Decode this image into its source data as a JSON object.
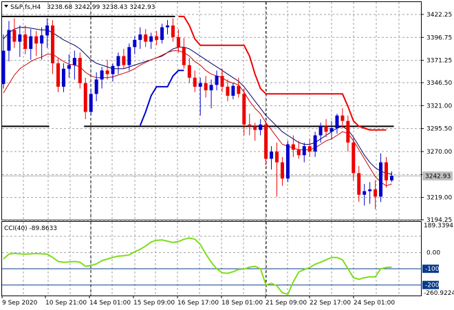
{
  "header": {
    "symbol_label": "S&P,fs,H4",
    "ohlc": "3238.68 3242.99 3238.43 3242.93"
  },
  "price_axis": {
    "ticks": [
      "3422.25",
      "3396.75",
      "3371.25",
      "3346.50",
      "3321.00",
      "3295.50",
      "3270.00",
      "3244.50",
      "3219.00",
      "3194.25"
    ],
    "current_label": "3242.93",
    "current_price": 3242.93
  },
  "cci_panel": {
    "label": "CCI(40) -89.8633",
    "max_label": "189.3394",
    "min_label": "-260.9224",
    "ticks": [
      "0.00",
      "-100",
      "-200"
    ],
    "highlight_ticks": [
      "-100",
      "-200"
    ],
    "levels": [
      100,
      0,
      -100,
      -200
    ]
  },
  "time_axis": {
    "labels": [
      "9 Sep 2020",
      "10 Sep 21:00",
      "14 Sep 01:00",
      "15 Sep 09:00",
      "16 Sep 17:00",
      "18 Sep 01:00",
      "21 Sep 09:00",
      "22 Sep 17:00",
      "24 Sep 01:00"
    ]
  },
  "colors": {
    "bull": "#0000cc",
    "bear": "#ee0000",
    "ma_fast": "#cc0000",
    "ma_slow": "#000066",
    "channel_upper": "#ee0000",
    "channel_lower": "#0000cc",
    "cci": "#7cde16",
    "grid": "#a0a0a0",
    "label_bg": "#c0c0c0",
    "level_highlight": "#0a3a8a"
  },
  "chart_data": {
    "type": "candlestick",
    "timeframe": "H4",
    "ylim": [
      3194.25,
      3436
    ],
    "candles": [
      [
        3345,
        3400,
        3340,
        3382
      ],
      [
        3382,
        3415,
        3370,
        3405
      ],
      [
        3405,
        3418,
        3385,
        3392
      ],
      [
        3392,
        3410,
        3375,
        3400
      ],
      [
        3400,
        3410,
        3378,
        3384
      ],
      [
        3384,
        3406,
        3372,
        3398
      ],
      [
        3398,
        3404,
        3376,
        3390
      ],
      [
        3390,
        3408,
        3372,
        3399
      ],
      [
        3399,
        3418,
        3385,
        3410
      ],
      [
        3410,
        3416,
        3356,
        3368
      ],
      [
        3368,
        3374,
        3336,
        3342
      ],
      [
        3342,
        3368,
        3336,
        3362
      ],
      [
        3362,
        3378,
        3352,
        3366
      ],
      [
        3366,
        3382,
        3350,
        3374
      ],
      [
        3374,
        3380,
        3340,
        3346
      ],
      [
        3346,
        3352,
        3306,
        3314
      ],
      [
        3314,
        3340,
        3310,
        3334
      ],
      [
        3334,
        3358,
        3326,
        3350
      ],
      [
        3350,
        3364,
        3340,
        3360
      ],
      [
        3360,
        3372,
        3350,
        3356
      ],
      [
        3356,
        3368,
        3348,
        3365
      ],
      [
        3365,
        3380,
        3356,
        3376
      ],
      [
        3376,
        3384,
        3362,
        3366
      ],
      [
        3366,
        3390,
        3360,
        3386
      ],
      [
        3386,
        3398,
        3378,
        3394
      ],
      [
        3394,
        3408,
        3384,
        3400
      ],
      [
        3400,
        3406,
        3386,
        3392
      ],
      [
        3392,
        3402,
        3384,
        3398
      ],
      [
        3398,
        3404,
        3388,
        3394
      ],
      [
        3394,
        3412,
        3390,
        3408
      ],
      [
        3408,
        3416,
        3400,
        3410
      ],
      [
        3410,
        3418,
        3392,
        3397
      ],
      [
        3397,
        3406,
        3380,
        3386
      ],
      [
        3386,
        3396,
        3362,
        3366
      ],
      [
        3366,
        3374,
        3346,
        3352
      ],
      [
        3352,
        3360,
        3336,
        3342
      ],
      [
        3342,
        3352,
        3310,
        3346
      ],
      [
        3346,
        3354,
        3330,
        3338
      ],
      [
        3338,
        3350,
        3318,
        3344
      ],
      [
        3344,
        3360,
        3338,
        3354
      ],
      [
        3354,
        3362,
        3336,
        3342
      ],
      [
        3342,
        3350,
        3326,
        3332
      ],
      [
        3332,
        3346,
        3328,
        3343
      ],
      [
        3343,
        3352,
        3330,
        3334
      ],
      [
        3334,
        3340,
        3288,
        3300
      ],
      [
        3300,
        3312,
        3288,
        3298
      ],
      [
        3298,
        3302,
        3282,
        3294
      ],
      [
        3294,
        3306,
        3288,
        3300
      ],
      [
        3300,
        3304,
        3255,
        3262
      ],
      [
        3262,
        3276,
        3250,
        3270
      ],
      [
        3270,
        3280,
        3220,
        3258
      ],
      [
        3258,
        3264,
        3232,
        3240
      ],
      [
        3240,
        3282,
        3236,
        3278
      ],
      [
        3278,
        3288,
        3264,
        3272
      ],
      [
        3272,
        3282,
        3262,
        3266
      ],
      [
        3266,
        3280,
        3258,
        3276
      ],
      [
        3276,
        3284,
        3264,
        3270
      ],
      [
        3270,
        3292,
        3264,
        3288
      ],
      [
        3288,
        3302,
        3280,
        3298
      ],
      [
        3298,
        3306,
        3286,
        3292
      ],
      [
        3292,
        3304,
        3284,
        3296
      ],
      [
        3296,
        3312,
        3290,
        3310
      ],
      [
        3310,
        3318,
        3296,
        3304
      ],
      [
        3304,
        3310,
        3270,
        3280
      ],
      [
        3280,
        3286,
        3238,
        3246
      ],
      [
        3246,
        3254,
        3214,
        3222
      ],
      [
        3222,
        3234,
        3210,
        3226
      ],
      [
        3226,
        3236,
        3212,
        3228
      ],
      [
        3228,
        3238,
        3206,
        3220
      ],
      [
        3220,
        3268,
        3214,
        3258
      ],
      [
        3258,
        3264,
        3230,
        3238
      ],
      [
        3238,
        3248,
        3236,
        3242.93
      ]
    ],
    "ma_fast": [
      3335,
      3345,
      3355,
      3362,
      3366,
      3370,
      3373,
      3375,
      3378,
      3378,
      3374,
      3370,
      3367,
      3366,
      3364,
      3358,
      3354,
      3352,
      3352,
      3352,
      3353,
      3355,
      3357,
      3359,
      3362,
      3366,
      3369,
      3372,
      3374,
      3377,
      3380,
      3382,
      3382,
      3380,
      3376,
      3370,
      3366,
      3360,
      3356,
      3354,
      3352,
      3348,
      3346,
      3344,
      3336,
      3326,
      3318,
      3312,
      3302,
      3294,
      3286,
      3278,
      3276,
      3274,
      3272,
      3272,
      3272,
      3274,
      3278,
      3282,
      3284,
      3288,
      3292,
      3290,
      3282,
      3272,
      3262,
      3252,
      3242,
      3236,
      3232,
      3234
    ],
    "ma_slow": [
      3395,
      3402,
      3406,
      3408,
      3408,
      3407,
      3406,
      3405,
      3405,
      3402,
      3398,
      3394,
      3391,
      3388,
      3384,
      3378,
      3372,
      3368,
      3366,
      3364,
      3362,
      3362,
      3362,
      3364,
      3366,
      3368,
      3370,
      3372,
      3374,
      3376,
      3380,
      3384,
      3386,
      3386,
      3384,
      3380,
      3376,
      3372,
      3368,
      3364,
      3360,
      3356,
      3352,
      3348,
      3342,
      3334,
      3326,
      3318,
      3310,
      3304,
      3298,
      3292,
      3288,
      3284,
      3280,
      3278,
      3278,
      3280,
      3284,
      3288,
      3292,
      3296,
      3298,
      3294,
      3286,
      3276,
      3266,
      3258,
      3252,
      3248,
      3246,
      3245
    ],
    "channel_upper": [
      null,
      null,
      null,
      null,
      null,
      null,
      null,
      null,
      null,
      null,
      null,
      null,
      null,
      null,
      null,
      null,
      null,
      null,
      null,
      null,
      null,
      null,
      null,
      null,
      null,
      null,
      null,
      null,
      null,
      null,
      null,
      null,
      3420,
      3420,
      3410,
      3395,
      3388,
      3388,
      3388,
      3388,
      3388,
      3388,
      3388,
      3388,
      3388,
      3376,
      3356,
      3340,
      3334,
      3334,
      3334,
      3334,
      3334,
      3334,
      3334,
      3334,
      3334,
      3334,
      3334,
      3334,
      3334,
      3334,
      3334,
      3320,
      3304,
      3298,
      3296,
      3294,
      3294,
      3294,
      3294,
      null
    ],
    "channel_lower": [
      null,
      null,
      null,
      null,
      null,
      null,
      null,
      null,
      null,
      null,
      null,
      null,
      null,
      null,
      null,
      null,
      null,
      null,
      null,
      null,
      null,
      null,
      null,
      null,
      null,
      3299,
      3314,
      3332,
      3342,
      3342,
      3342,
      3354,
      3360,
      3360,
      null,
      null,
      null,
      null,
      null,
      null,
      null,
      null,
      null,
      null,
      null,
      null,
      null,
      null,
      null,
      null,
      null,
      null,
      null,
      null,
      null,
      null,
      null,
      null,
      null,
      null,
      null,
      null,
      null,
      null,
      null,
      null,
      null,
      null,
      null,
      null,
      null,
      null
    ],
    "hlines": [
      {
        "value": 3420,
        "from": 0,
        "to": 31
      },
      {
        "value": 3298,
        "from": 0,
        "to": 8
      },
      {
        "value": 3298,
        "from": 15,
        "to": 71
      }
    ],
    "cci": [
      -40,
      -10,
      -5,
      -8,
      -10,
      -8,
      -6,
      -8,
      -10,
      -30,
      -55,
      -60,
      -58,
      -55,
      -60,
      -85,
      -80,
      -70,
      -50,
      -40,
      -30,
      -22,
      -20,
      -15,
      5,
      20,
      40,
      65,
      75,
      78,
      70,
      62,
      68,
      82,
      90,
      82,
      50,
      -10,
      -60,
      -100,
      -125,
      -128,
      -118,
      -104,
      -102,
      -90,
      -85,
      -100,
      -200,
      -190,
      -205,
      -248,
      -258,
      -180,
      -120,
      -105,
      -92,
      -72,
      -60,
      -45,
      -30,
      -30,
      -45,
      -100,
      -155,
      -165,
      -155,
      -150,
      -150,
      -100,
      -92,
      -89.86
    ],
    "cci_ylim": [
      -265,
      189.3394
    ]
  }
}
